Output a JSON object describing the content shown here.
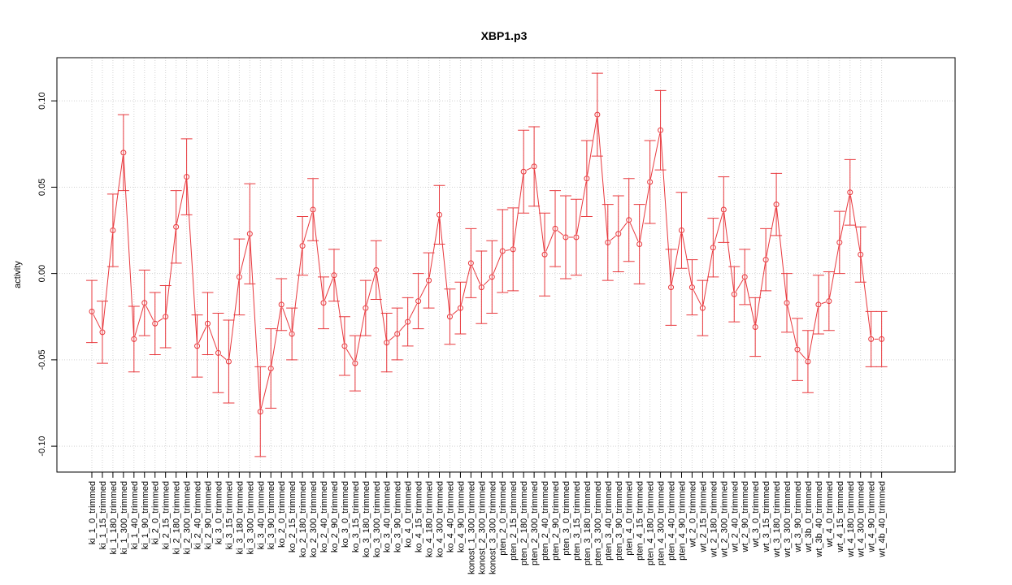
{
  "chart_data": {
    "type": "line",
    "title": "XBP1.p3",
    "xlabel": "",
    "ylabel": "activity",
    "ylim": [
      -0.115,
      0.125
    ],
    "yticks": [
      -0.1,
      -0.05,
      0.0,
      0.05,
      0.1
    ],
    "ytick_labels": [
      "-0.10",
      "-0.05",
      "0.00",
      "0.05",
      "0.10"
    ],
    "grid": true,
    "color": "#e8383d",
    "categories": [
      "ki_1_0_trimmed",
      "ki_1_15_trimmed",
      "ki_1_180_trimmed",
      "ki_1_300_trimmed",
      "ki_1_40_trimmed",
      "ki_1_90_trimmed",
      "ki_2_0_trimmed",
      "ki_2_15_trimmed",
      "ki_2_180_trimmed",
      "ki_2_300_trimmed",
      "ki_2_40_trimmed",
      "ki_2_90_trimmed",
      "ki_3_0_trimmed",
      "ki_3_15_trimmed",
      "ki_3_180_trimmed",
      "ki_3_300_trimmed",
      "ki_3_40_trimmed",
      "ki_3_90_trimmed",
      "ko_2_0_trimmed",
      "ko_2_15_trimmed",
      "ko_2_180_trimmed",
      "ko_2_300_trimmed",
      "ko_2_40_trimmed",
      "ko_2_90_trimmed",
      "ko_3_0_trimmed",
      "ko_3_15_trimmed",
      "ko_3_180_trimmed",
      "ko_3_300_trimmed",
      "ko_3_40_trimmed",
      "ko_3_90_trimmed",
      "ko_4_0_trimmed",
      "ko_4_15_trimmed",
      "ko_4_180_trimmed",
      "ko_4_300_trimmed",
      "ko_4_40_trimmed",
      "ko_4_90_trimmed",
      "konost_1_300_trimmed",
      "konost_2_300_trimmed",
      "konost_3_300_trimmed",
      "pten_2_0_trimmed",
      "pten_2_15_trimmed",
      "pten_2_180_trimmed",
      "pten_2_300_trimmed",
      "pten_2_40_trimmed",
      "pten_2_90_trimmed",
      "pten_3_0_trimmed",
      "pten_3_15_trimmed",
      "pten_3_180_trimmed",
      "pten_3_300_trimmed",
      "pten_3_40_trimmed",
      "pten_3_90_trimmed",
      "pten_4_0_trimmed",
      "pten_4_15_trimmed",
      "pten_4_180_trimmed",
      "pten_4_300_trimmed",
      "pten_4_40_trimmed",
      "pten_4_90_trimmed",
      "wt_2_0_trimmed",
      "wt_2_15_trimmed",
      "wt_2_180_trimmed",
      "wt_2_300_trimmed",
      "wt_2_40_trimmed",
      "wt_2_90_trimmed",
      "wt_3_0_trimmed",
      "wt_3_15_trimmed",
      "wt_3_180_trimmed",
      "wt_3_300_trimmed",
      "wt_3_90_trimmed",
      "wt_3b_0_trimmed",
      "wt_3b_40_trimmed",
      "wt_4_0_trimmed",
      "wt_4_15_trimmed",
      "wt_4_180_trimmed",
      "wt_4_300_trimmed",
      "wt_4_90_trimmed",
      "wt_4b_40_trimmed"
    ],
    "values": [
      -0.022,
      -0.034,
      0.025,
      0.07,
      -0.038,
      -0.017,
      -0.029,
      -0.025,
      0.027,
      0.056,
      -0.042,
      -0.029,
      -0.046,
      -0.051,
      -0.002,
      0.023,
      -0.08,
      -0.055,
      -0.018,
      -0.035,
      0.016,
      0.037,
      -0.017,
      -0.001,
      -0.042,
      -0.052,
      -0.02,
      0.002,
      -0.04,
      -0.035,
      -0.028,
      -0.016,
      -0.004,
      0.034,
      -0.025,
      -0.02,
      0.006,
      -0.008,
      -0.002,
      0.013,
      0.014,
      0.059,
      0.062,
      0.011,
      0.026,
      0.021,
      0.021,
      0.055,
      0.092,
      0.018,
      0.023,
      0.031,
      0.017,
      0.053,
      0.083,
      -0.008,
      0.025,
      -0.008,
      -0.02,
      0.015,
      0.037,
      -0.012,
      -0.002,
      -0.031,
      0.008,
      0.04,
      -0.017,
      -0.044,
      -0.051,
      -0.018,
      -0.016,
      0.018,
      0.047,
      0.011,
      -0.038,
      -0.038
    ],
    "errors": [
      0.018,
      0.018,
      0.021,
      0.022,
      0.019,
      0.019,
      0.018,
      0.018,
      0.021,
      0.022,
      0.018,
      0.018,
      0.023,
      0.024,
      0.022,
      0.029,
      0.026,
      0.023,
      0.015,
      0.015,
      0.017,
      0.018,
      0.015,
      0.015,
      0.017,
      0.016,
      0.016,
      0.017,
      0.017,
      0.015,
      0.014,
      0.016,
      0.016,
      0.017,
      0.016,
      0.015,
      0.02,
      0.021,
      0.021,
      0.024,
      0.024,
      0.024,
      0.023,
      0.024,
      0.022,
      0.024,
      0.022,
      0.022,
      0.024,
      0.022,
      0.022,
      0.024,
      0.023,
      0.024,
      0.023,
      0.022,
      0.022,
      0.016,
      0.016,
      0.017,
      0.019,
      0.016,
      0.016,
      0.017,
      0.018,
      0.018,
      0.017,
      0.018,
      0.018,
      0.017,
      0.017,
      0.018,
      0.019,
      0.016,
      0.016,
      0.016
    ]
  }
}
